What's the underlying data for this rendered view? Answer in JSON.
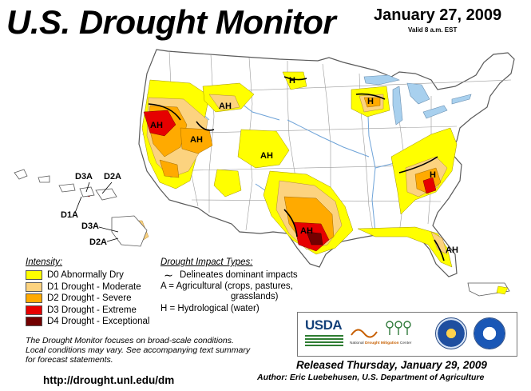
{
  "header": {
    "title": "U.S. Drought Monitor",
    "date": "January 27, 2009",
    "valid": "Valid 8 a.m. EST"
  },
  "colors": {
    "D0": "#ffff00",
    "D1": "#fcd37f",
    "D2": "#ffaa00",
    "D3": "#e60000",
    "D4": "#730000",
    "water": "#a8d0ee",
    "land": "#ffffff"
  },
  "map_labels": {
    "ah_ca": "AH",
    "ah_id": "AH",
    "ah_nv": "AH",
    "ah_co": "AH",
    "h_mn": "H",
    "h_wi": "H",
    "ah_tx": "AH",
    "h_nc": "H",
    "ah_fl": "AH",
    "hi_d3a_top": "D3A",
    "hi_d2a_top": "D2A",
    "hi_d1a": "D1A",
    "hi_d3a_bottom": "D3A",
    "hi_d2a_bottom": "D2A"
  },
  "legend": {
    "title": "Intensity:",
    "items": [
      {
        "code": "D0",
        "label": "D0 Abnormally Dry"
      },
      {
        "code": "D1",
        "label": "D1 Drought - Moderate"
      },
      {
        "code": "D2",
        "label": "D2 Drought - Severe"
      },
      {
        "code": "D3",
        "label": "D3 Drought - Extreme"
      },
      {
        "code": "D4",
        "label": "D4 Drought - Exceptional"
      }
    ]
  },
  "impact_types": {
    "title": "Drought Impact Types:",
    "line1": "Delineates dominant impacts",
    "line2": "A = Agricultural (crops, pastures,",
    "line2b": "grasslands)",
    "line3": "H = Hydrological (water)"
  },
  "notes": {
    "line1": "The Drought Monitor focuses on broad-scale conditions.",
    "line2": "Local conditions may vary. See accompanying text summary",
    "line3": "for forecast statements."
  },
  "url": "http://drought.unl.edu/dm",
  "logos": {
    "usda": "USDA",
    "ndmc_pre": "National ",
    "ndmc_mid": "Drought Mitigation",
    "ndmc_post": " Center"
  },
  "footer": {
    "released": "Released Thursday, January 29, 2009",
    "author": "Author: Eric Luebehusen, U.S. Department of Agriculture"
  }
}
